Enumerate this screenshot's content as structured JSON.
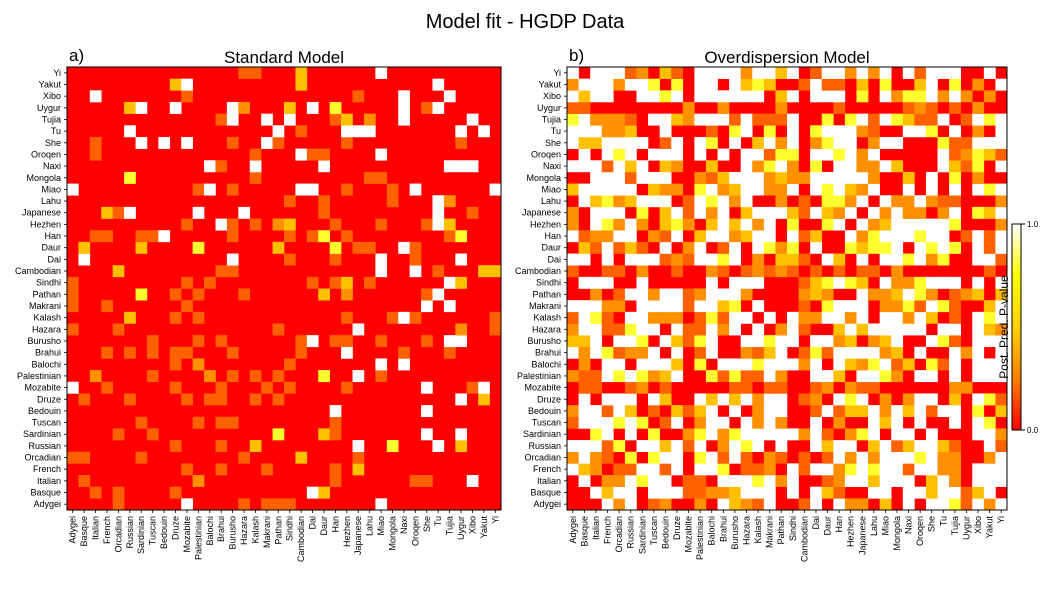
{
  "chart_data": {
    "type": "heatmap",
    "title": "Model fit - HGDP Data",
    "populations": [
      "Adygei",
      "Basque",
      "Italian",
      "French",
      "Orcadian",
      "Russian",
      "Sardinian",
      "Tuscan",
      "Bedouin",
      "Druze",
      "Mozabite",
      "Palestinian",
      "Balochi",
      "Brahui",
      "Burusho",
      "Hazara",
      "Kalash",
      "Makrani",
      "Pathan",
      "Sindhi",
      "Cambodian",
      "Dai",
      "Daur",
      "Han",
      "Hezhen",
      "Japanese",
      "Lahu",
      "Miao",
      "Mongola",
      "Naxi",
      "Oroqen",
      "She",
      "Tu",
      "Tujia",
      "Uygur",
      "Xibo",
      "Yakut",
      "Yi"
    ],
    "panels": [
      {
        "label": "a)",
        "title": "Standard Model",
        "regions": [
          {
            "rows": "Cambodian..Yi",
            "cols": "Adygei..Yi",
            "level": 0.12
          },
          {
            "rows": "Adygei..Sindhi",
            "cols": "Cambodian..Yi",
            "level": 0.12
          },
          {
            "rows": "Adygei..Sindhi",
            "cols": "Adygei..Sindhi",
            "level": 0.02
          }
        ]
      },
      {
        "label": "b)",
        "title": "Overdispersion Model",
        "regions": [
          {
            "rows": "Cambodian..Yi",
            "cols": "Adygei..Yi",
            "level": 0.45
          },
          {
            "rows": "Adygei..Sindhi",
            "cols": "Cambodian..Yi",
            "level": 0.45
          },
          {
            "rows": "Adygei..Sindhi",
            "cols": "Adygei..Sindhi",
            "level": 0.45
          }
        ],
        "structural_low": [
          "Mozabite",
          "Uygur",
          "Cambodian"
        ]
      }
    ],
    "colorbar": {
      "label": "Post. Pred. P-value",
      "min": 0.0,
      "max": 1.0,
      "min_label": "0.0",
      "max_label": "1.0",
      "colors": [
        "#ff0000",
        "#ff8000",
        "#ffd000",
        "#ffff00",
        "#ffffff"
      ]
    }
  }
}
